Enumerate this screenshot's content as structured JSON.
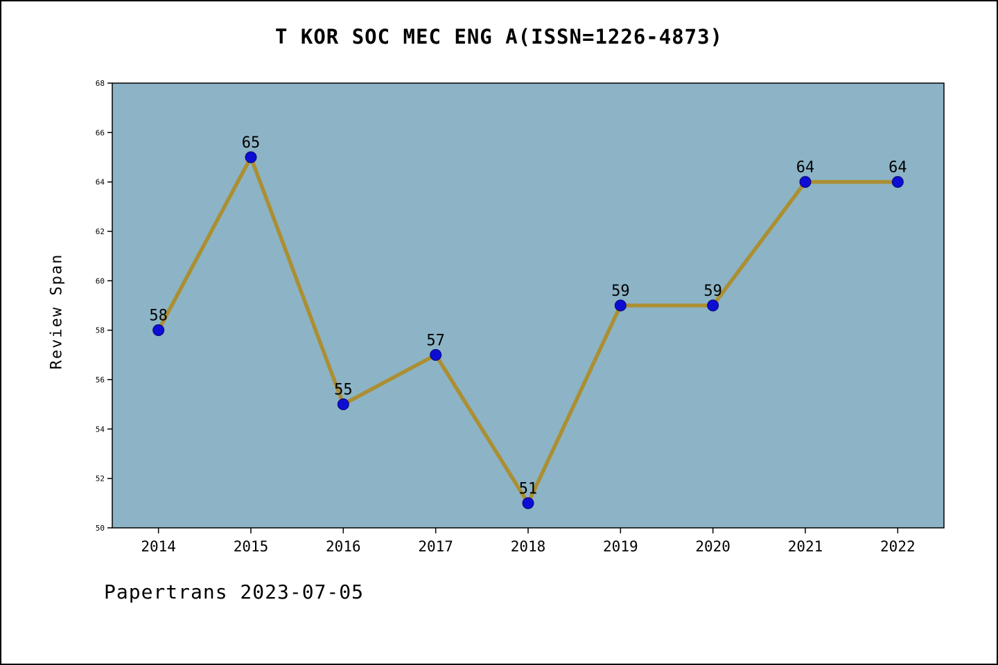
{
  "chart_data": {
    "type": "line",
    "title": "T KOR SOC MEC ENG A(ISSN=1226-4873)",
    "xlabel": "",
    "ylabel": "Review Span",
    "categories": [
      "2014",
      "2015",
      "2016",
      "2017",
      "2018",
      "2019",
      "2020",
      "2021",
      "2022"
    ],
    "values": [
      58,
      65,
      55,
      57,
      51,
      59,
      59,
      64,
      64
    ],
    "ylim": [
      50,
      68
    ],
    "ytick_step": 2,
    "grid": false,
    "legend": "none",
    "colors": {
      "page_background": "#ffffff",
      "border": "#000000",
      "plot_background": "#8cb4c6",
      "line": "#ab8f33",
      "marker": "#0d0dd4",
      "marker_edge": "#0a0a70",
      "text": "#000000"
    }
  },
  "footer": {
    "text": "Papertrans 2023-07-05"
  }
}
